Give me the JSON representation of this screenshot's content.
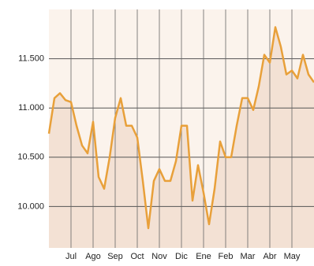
{
  "chart_data": {
    "type": "area",
    "categories": [
      null,
      null,
      null,
      null,
      "Jul",
      null,
      null,
      null,
      "Ago",
      null,
      null,
      null,
      "Sep",
      null,
      null,
      null,
      "Oct",
      null,
      null,
      null,
      "Nov",
      null,
      null,
      null,
      "Dic",
      null,
      null,
      null,
      "Ene",
      null,
      null,
      null,
      "Feb",
      null,
      null,
      null,
      "Mar",
      null,
      null,
      null,
      "Abr",
      null,
      null,
      null,
      "May",
      null,
      null,
      null,
      null
    ],
    "values": [
      10740,
      11100,
      11150,
      11080,
      11060,
      10820,
      10620,
      10540,
      10860,
      10300,
      10180,
      10500,
      10900,
      11100,
      10820,
      10820,
      10700,
      10260,
      9780,
      10260,
      10380,
      10260,
      10260,
      10460,
      10820,
      10820,
      10060,
      10420,
      10140,
      9820,
      10180,
      10660,
      10500,
      10500,
      10820,
      11100,
      11100,
      10980,
      11220,
      11540,
      11460,
      11820,
      11620,
      11340,
      11380,
      11300,
      11540,
      11340,
      11260
    ],
    "color": "#e8a03a",
    "fill_color": "#f3e1d4",
    "ylim": [
      9580,
      12000
    ],
    "yticks": [
      {
        "value": 10000,
        "label": "10.000"
      },
      {
        "value": 10500,
        "label": "10.500"
      },
      {
        "value": 11000,
        "label": "11.000"
      },
      {
        "value": 11500,
        "label": "11.500"
      }
    ],
    "grid": true
  }
}
